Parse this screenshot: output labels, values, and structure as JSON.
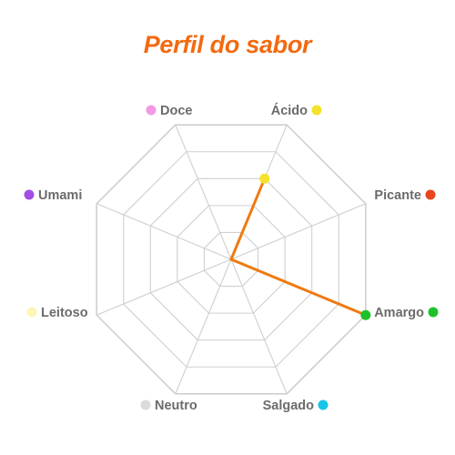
{
  "chart_data": {
    "type": "radar",
    "title": "Perfil do sabor",
    "axes": [
      {
        "label": "Ácido",
        "color": "#f5e22a",
        "value": 3
      },
      {
        "label": "Picante",
        "color": "#e8451c",
        "value": 0
      },
      {
        "label": "Amargo",
        "color": "#1fc12a",
        "value": 5
      },
      {
        "label": "Salgado",
        "color": "#17c3ea",
        "value": 0
      },
      {
        "label": "Neutro",
        "color": "#dcdcdc",
        "value": 0
      },
      {
        "label": "Leitoso",
        "color": "#fbf6b4",
        "value": 0
      },
      {
        "label": "Umami",
        "color": "#a34ee3",
        "value": 0
      },
      {
        "label": "Doce",
        "color": "#f39ae6",
        "value": 0
      }
    ],
    "range": [
      0,
      5
    ],
    "rings": 5,
    "grid": true,
    "series_color": "#ee7a12",
    "series_fill": "#f9c79a",
    "title_color": "#f26a10"
  }
}
